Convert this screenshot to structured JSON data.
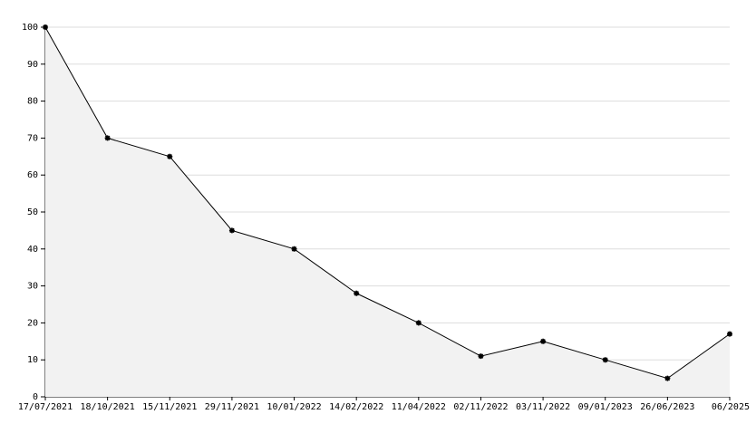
{
  "chart_data": {
    "type": "line",
    "categories": [
      "17/07/2021",
      "18/10/2021",
      "15/11/2021",
      "29/11/2021",
      "10/01/2022",
      "14/02/2022",
      "11/04/2022",
      "02/11/2022",
      "03/11/2022",
      "09/01/2023",
      "26/06/2023",
      "06/2025"
    ],
    "values": [
      100,
      70,
      65,
      45,
      40,
      28,
      20,
      11,
      15,
      10,
      5,
      17
    ],
    "color": "#000000",
    "fill": "#f2f2f2",
    "ylim": [
      0,
      100
    ],
    "yticks": [
      0,
      10,
      20,
      30,
      40,
      50,
      60,
      70,
      80,
      90,
      100
    ],
    "grid": true
  }
}
